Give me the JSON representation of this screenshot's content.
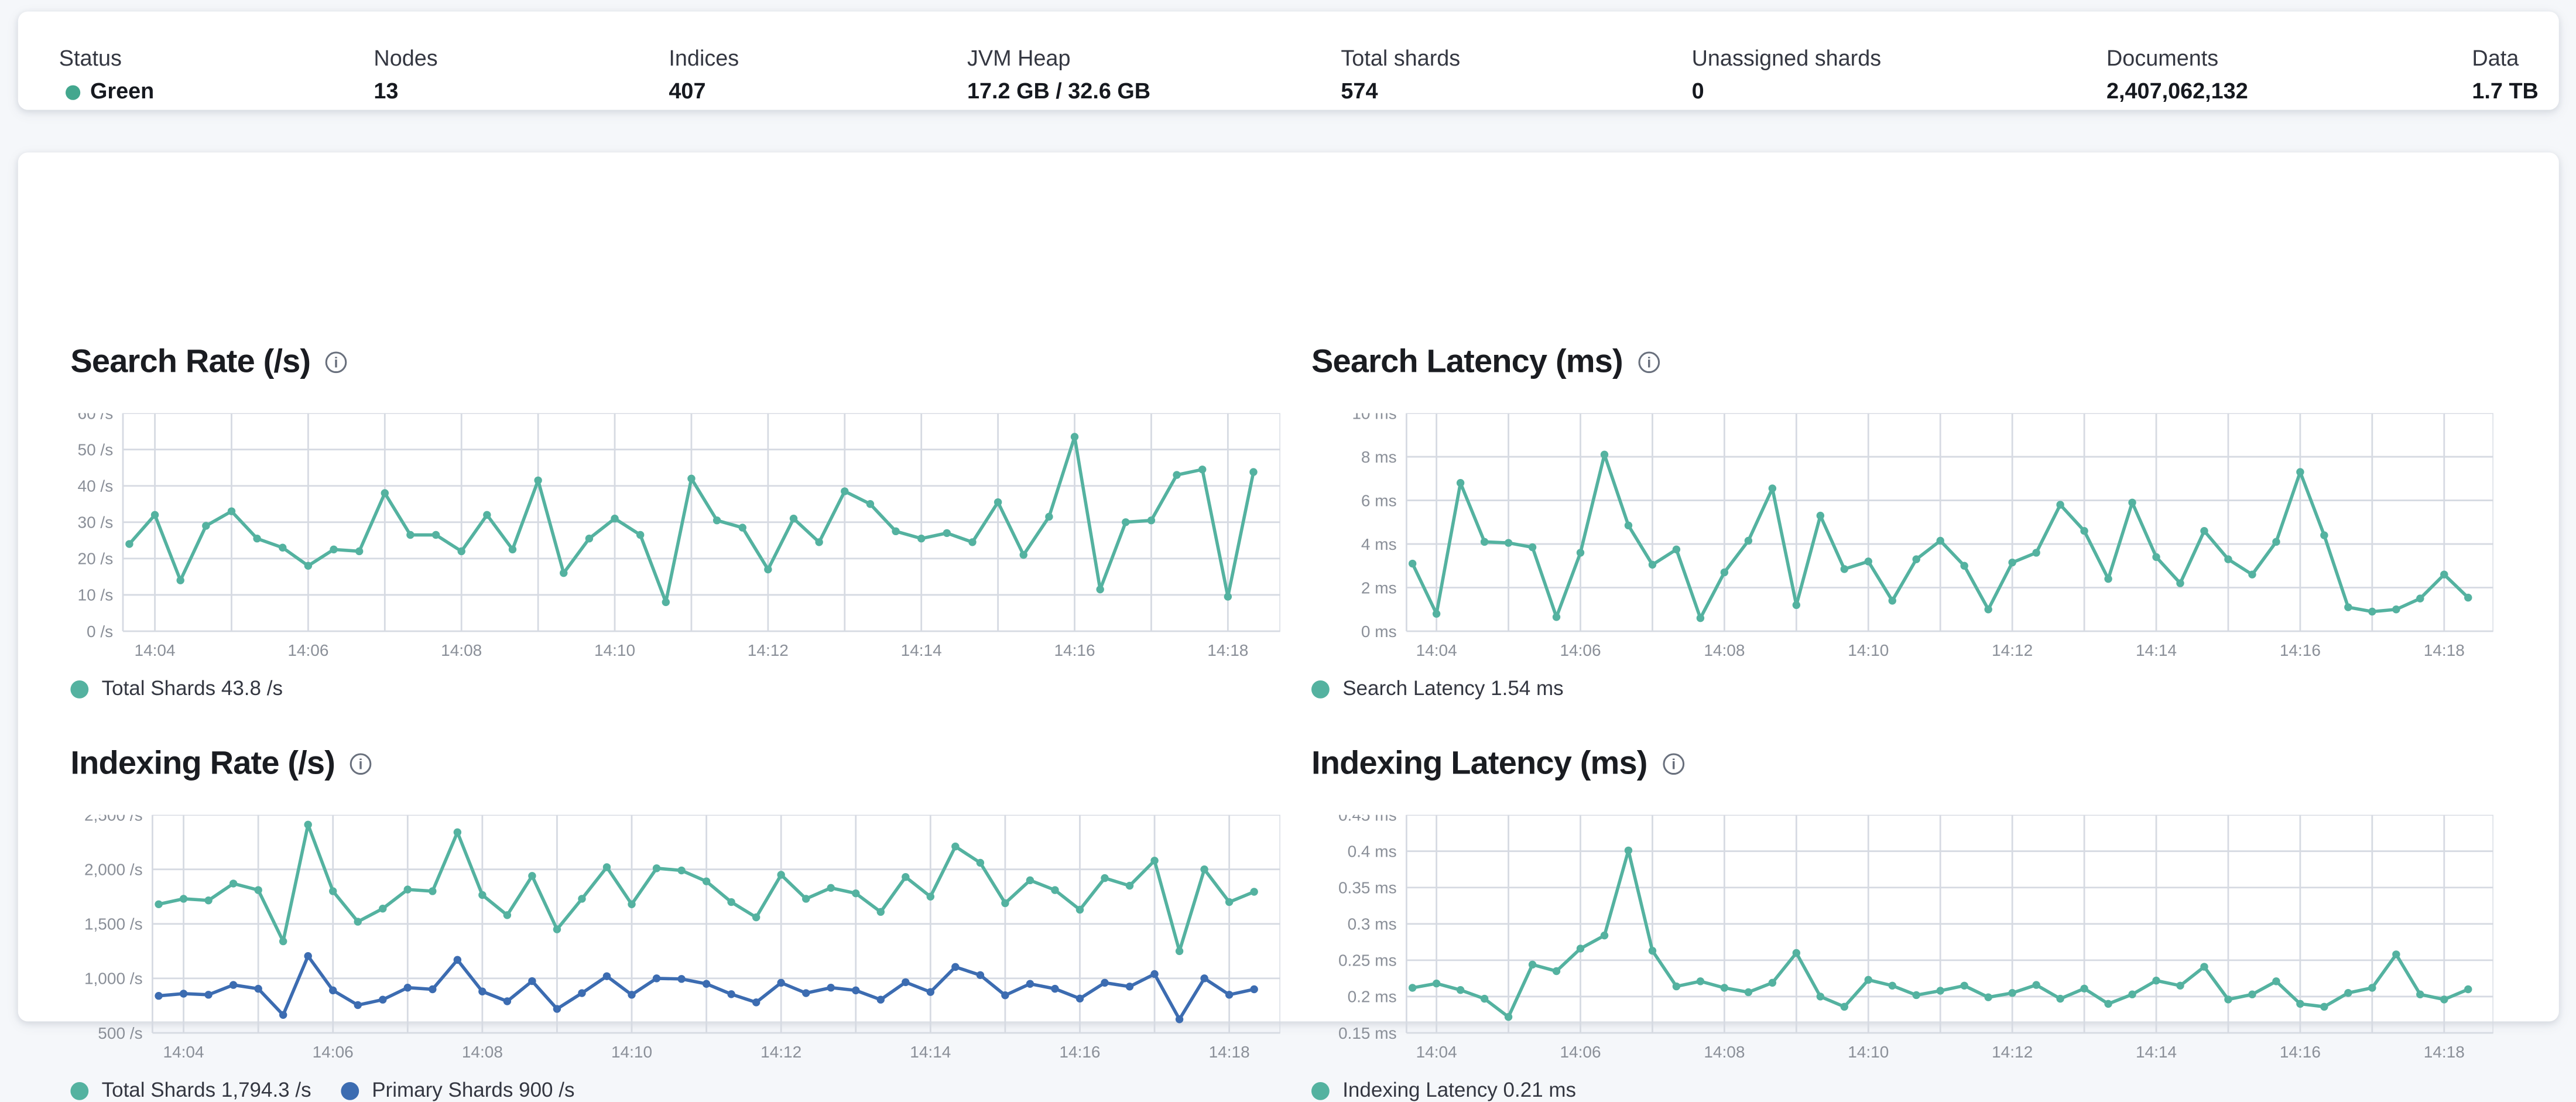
{
  "page": {
    "background": "#F5F7FA"
  },
  "icons": {
    "info": "i"
  },
  "colors": {
    "teal": "#54B2A0",
    "blue": "#3C6CB1",
    "health_green": "#43A78E",
    "grid": "#D6DAE2",
    "axis_text": "#8A8F98"
  },
  "header": {
    "stats": [
      {
        "label": "Status",
        "value": "Green",
        "type": "health",
        "dot_color": "#43A78E"
      },
      {
        "label": "Nodes",
        "value": "13"
      },
      {
        "label": "Indices",
        "value": "407"
      },
      {
        "label": "JVM Heap",
        "value": "17.2 GB / 32.6 GB"
      },
      {
        "label": "Total shards",
        "value": "574"
      },
      {
        "label": "Unassigned shards",
        "value": "0"
      },
      {
        "label": "Documents",
        "value": "2,407,062,132"
      },
      {
        "label": "Data",
        "value": "1.7 TB"
      }
    ]
  },
  "chart_data": [
    {
      "type": "line",
      "title": "Search Rate (/s)",
      "ylim": [
        0,
        60
      ],
      "y_ticks": [
        {
          "value": 60,
          "label": "60 /s"
        },
        {
          "value": 50,
          "label": "50 /s"
        },
        {
          "value": 40,
          "label": "40 /s"
        },
        {
          "value": 30,
          "label": "30 /s"
        },
        {
          "value": 20,
          "label": "20 /s"
        },
        {
          "value": 10,
          "label": "10 /s"
        },
        {
          "value": 0,
          "label": "0 /s"
        }
      ],
      "x_domain_seconds": [
        0,
        906
      ],
      "x_gridline_start_s": 25,
      "x_gridline_interval_s": 60,
      "x_tick_labels": [
        {
          "s": 25,
          "label": "14:04"
        },
        {
          "s": 145,
          "label": "14:06"
        },
        {
          "s": 265,
          "label": "14:08"
        },
        {
          "s": 385,
          "label": "14:10"
        },
        {
          "s": 505,
          "label": "14:12"
        },
        {
          "s": 625,
          "label": "14:14"
        },
        {
          "s": 745,
          "label": "14:16"
        },
        {
          "s": 865,
          "label": "14:18"
        }
      ],
      "point_start_s": 5,
      "point_interval_s": 20,
      "series": [
        {
          "name": "Total Shards",
          "current": "43.8 /s",
          "color": "#54B2A0",
          "values": [
            24,
            32,
            14,
            29,
            33,
            25.5,
            23,
            18,
            22.5,
            22,
            38,
            26.5,
            26.5,
            22,
            32,
            22.5,
            41.5,
            16,
            25.5,
            31,
            26.5,
            8,
            42,
            30.5,
            28.5,
            17,
            31,
            24.5,
            38.5,
            35,
            27.5,
            25.5,
            27,
            24.5,
            35.5,
            21,
            31.5,
            53.5,
            11.5,
            30,
            30.5,
            43,
            44.5,
            9.5,
            43.8
          ]
        }
      ]
    },
    {
      "type": "line",
      "title": "Search Latency (ms)",
      "ylim": [
        0,
        10
      ],
      "y_ticks": [
        {
          "value": 10,
          "label": "10 ms"
        },
        {
          "value": 8,
          "label": "8 ms"
        },
        {
          "value": 6,
          "label": "6 ms"
        },
        {
          "value": 4,
          "label": "4 ms"
        },
        {
          "value": 2,
          "label": "2 ms"
        },
        {
          "value": 0,
          "label": "0 ms"
        }
      ],
      "x_domain_seconds": [
        0,
        906
      ],
      "x_gridline_start_s": 25,
      "x_gridline_interval_s": 60,
      "x_tick_labels": [
        {
          "s": 25,
          "label": "14:04"
        },
        {
          "s": 145,
          "label": "14:06"
        },
        {
          "s": 265,
          "label": "14:08"
        },
        {
          "s": 385,
          "label": "14:10"
        },
        {
          "s": 505,
          "label": "14:12"
        },
        {
          "s": 625,
          "label": "14:14"
        },
        {
          "s": 745,
          "label": "14:16"
        },
        {
          "s": 865,
          "label": "14:18"
        }
      ],
      "point_start_s": 5,
      "point_interval_s": 20,
      "series": [
        {
          "name": "Search Latency",
          "current": "1.54 ms",
          "color": "#54B2A0",
          "values": [
            3.1,
            0.8,
            6.8,
            4.1,
            4.05,
            3.85,
            0.65,
            3.6,
            8.1,
            4.85,
            3.05,
            3.75,
            0.6,
            2.7,
            4.15,
            6.55,
            1.2,
            5.3,
            2.85,
            3.2,
            1.4,
            3.3,
            4.15,
            3.0,
            1.0,
            3.15,
            3.6,
            5.8,
            4.6,
            2.4,
            5.9,
            3.4,
            2.2,
            4.6,
            3.3,
            2.6,
            4.1,
            7.3,
            4.4,
            1.1,
            0.9,
            1.0,
            1.5,
            2.6,
            1.54
          ]
        }
      ]
    },
    {
      "type": "line",
      "title": "Indexing Rate (/s)",
      "ylim": [
        500,
        2500
      ],
      "y_ticks": [
        {
          "value": 2500,
          "label": "2,500 /s"
        },
        {
          "value": 2000,
          "label": "2,000 /s"
        },
        {
          "value": 1500,
          "label": "1,500 /s"
        },
        {
          "value": 1000,
          "label": "1,000 /s"
        },
        {
          "value": 500,
          "label": "500 /s"
        }
      ],
      "x_domain_seconds": [
        0,
        906
      ],
      "x_gridline_start_s": 25,
      "x_gridline_interval_s": 60,
      "x_tick_labels": [
        {
          "s": 25,
          "label": "14:04"
        },
        {
          "s": 145,
          "label": "14:06"
        },
        {
          "s": 265,
          "label": "14:08"
        },
        {
          "s": 385,
          "label": "14:10"
        },
        {
          "s": 505,
          "label": "14:12"
        },
        {
          "s": 625,
          "label": "14:14"
        },
        {
          "s": 745,
          "label": "14:16"
        },
        {
          "s": 865,
          "label": "14:18"
        }
      ],
      "point_start_s": 5,
      "point_interval_s": 20,
      "series": [
        {
          "name": "Total Shards",
          "current": "1,794.3 /s",
          "color": "#54B2A0",
          "values": [
            1680,
            1730,
            1715,
            1870,
            1810,
            1340,
            2410,
            1800,
            1520,
            1640,
            1815,
            1800,
            2340,
            1765,
            1580,
            1940,
            1450,
            1730,
            2020,
            1680,
            2010,
            1990,
            1890,
            1700,
            1560,
            1950,
            1730,
            1830,
            1780,
            1610,
            1930,
            1750,
            2210,
            2060,
            1690,
            1900,
            1810,
            1630,
            1920,
            1850,
            2080,
            1250,
            2000,
            1700,
            1794.3
          ]
        },
        {
          "name": "Primary Shards",
          "current": "900 /s",
          "color": "#3C6CB1",
          "values": [
            840,
            860,
            850,
            940,
            905,
            665,
            1205,
            890,
            755,
            805,
            915,
            900,
            1170,
            880,
            790,
            975,
            720,
            865,
            1020,
            850,
            1000,
            995,
            950,
            855,
            780,
            960,
            865,
            915,
            890,
            805,
            965,
            875,
            1105,
            1030,
            845,
            950,
            905,
            815,
            960,
            925,
            1040,
            625,
            1000,
            850,
            900
          ]
        }
      ]
    },
    {
      "type": "line",
      "title": "Indexing Latency (ms)",
      "ylim": [
        0.15,
        0.45
      ],
      "y_ticks": [
        {
          "value": 0.45,
          "label": "0.45 ms"
        },
        {
          "value": 0.4,
          "label": "0.4 ms"
        },
        {
          "value": 0.35,
          "label": "0.35 ms"
        },
        {
          "value": 0.3,
          "label": "0.3 ms"
        },
        {
          "value": 0.25,
          "label": "0.25 ms"
        },
        {
          "value": 0.2,
          "label": "0.2 ms"
        },
        {
          "value": 0.15,
          "label": "0.15 ms"
        }
      ],
      "x_domain_seconds": [
        0,
        906
      ],
      "x_gridline_start_s": 25,
      "x_gridline_interval_s": 60,
      "x_tick_labels": [
        {
          "s": 25,
          "label": "14:04"
        },
        {
          "s": 145,
          "label": "14:06"
        },
        {
          "s": 265,
          "label": "14:08"
        },
        {
          "s": 385,
          "label": "14:10"
        },
        {
          "s": 505,
          "label": "14:12"
        },
        {
          "s": 625,
          "label": "14:14"
        },
        {
          "s": 745,
          "label": "14:16"
        },
        {
          "s": 865,
          "label": "14:18"
        }
      ],
      "point_start_s": 5,
      "point_interval_s": 20,
      "series": [
        {
          "name": "Indexing Latency",
          "current": "0.21 ms",
          "color": "#54B2A0",
          "values": [
            0.212,
            0.218,
            0.209,
            0.197,
            0.172,
            0.244,
            0.235,
            0.266,
            0.284,
            0.401,
            0.263,
            0.214,
            0.221,
            0.212,
            0.206,
            0.219,
            0.26,
            0.2,
            0.186,
            0.223,
            0.215,
            0.202,
            0.208,
            0.215,
            0.199,
            0.205,
            0.216,
            0.197,
            0.211,
            0.19,
            0.203,
            0.222,
            0.215,
            0.241,
            0.196,
            0.203,
            0.221,
            0.19,
            0.186,
            0.205,
            0.212,
            0.258,
            0.203,
            0.196,
            0.21
          ]
        }
      ]
    }
  ]
}
